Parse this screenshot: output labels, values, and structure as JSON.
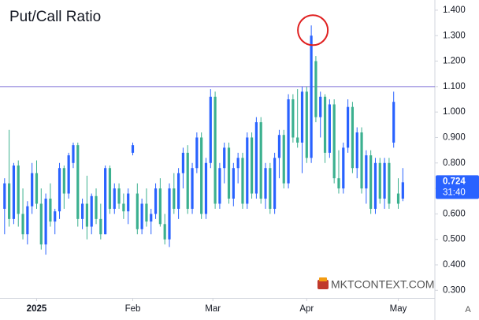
{
  "chart_data": {
    "type": "candlestick",
    "title": "Put/Call Ratio",
    "ohlc": [
      [
        0.62,
        0.74,
        0.52,
        0.72
      ],
      [
        0.72,
        0.93,
        0.55,
        0.58
      ],
      [
        0.58,
        0.8,
        0.56,
        0.79
      ],
      [
        0.79,
        0.81,
        0.55,
        0.6
      ],
      [
        0.6,
        0.7,
        0.5,
        0.52
      ],
      [
        0.52,
        0.65,
        0.48,
        0.63
      ],
      [
        0.63,
        0.8,
        0.6,
        0.76
      ],
      [
        0.76,
        0.81,
        0.62,
        0.64
      ],
      [
        0.64,
        0.7,
        0.46,
        0.48
      ],
      [
        0.48,
        0.68,
        0.44,
        0.66
      ],
      [
        0.66,
        0.72,
        0.55,
        0.57
      ],
      [
        0.57,
        0.62,
        0.52,
        0.61
      ],
      [
        0.61,
        0.8,
        0.58,
        0.78
      ],
      [
        0.78,
        0.79,
        0.62,
        0.68
      ],
      [
        0.68,
        0.84,
        0.66,
        0.83
      ],
      [
        0.8,
        0.88,
        0.78,
        0.87
      ],
      [
        0.87,
        0.88,
        0.55,
        0.58
      ],
      [
        0.58,
        0.66,
        0.54,
        0.64
      ],
      [
        0.64,
        0.75,
        0.5,
        0.55
      ],
      [
        0.55,
        0.68,
        0.52,
        0.67
      ],
      [
        0.67,
        0.7,
        0.56,
        0.58
      ],
      [
        0.58,
        0.64,
        0.5,
        0.52
      ],
      [
        0.52,
        0.79,
        0.52,
        0.78
      ],
      [
        0.78,
        0.79,
        0.6,
        0.62
      ],
      [
        0.62,
        0.72,
        0.6,
        0.7
      ],
      [
        0.7,
        0.72,
        0.62,
        0.64
      ],
      [
        0.64,
        0.68,
        0.58,
        0.61
      ],
      [
        0.61,
        0.7,
        0.56,
        0.68
      ],
      [
        0.84,
        0.88,
        0.83,
        0.87
      ],
      [
        0.68,
        0.72,
        0.52,
        0.54
      ],
      [
        0.54,
        0.66,
        0.52,
        0.64
      ],
      [
        0.64,
        0.7,
        0.55,
        0.57
      ],
      [
        0.57,
        0.62,
        0.52,
        0.6
      ],
      [
        0.6,
        0.72,
        0.58,
        0.7
      ],
      [
        0.7,
        0.74,
        0.55,
        0.56
      ],
      [
        0.56,
        0.6,
        0.48,
        0.5
      ],
      [
        0.5,
        0.72,
        0.47,
        0.7
      ],
      [
        0.7,
        0.76,
        0.6,
        0.62
      ],
      [
        0.62,
        0.78,
        0.58,
        0.76
      ],
      [
        0.76,
        0.86,
        0.7,
        0.84
      ],
      [
        0.84,
        0.87,
        0.6,
        0.62
      ],
      [
        0.62,
        0.8,
        0.6,
        0.78
      ],
      [
        0.78,
        0.92,
        0.76,
        0.9
      ],
      [
        0.9,
        0.92,
        0.58,
        0.6
      ],
      [
        0.6,
        0.82,
        0.58,
        0.8
      ],
      [
        0.8,
        1.09,
        0.78,
        1.06
      ],
      [
        1.06,
        1.08,
        0.62,
        0.64
      ],
      [
        0.64,
        0.8,
        0.62,
        0.78
      ],
      [
        0.78,
        0.88,
        0.72,
        0.86
      ],
      [
        0.86,
        0.88,
        0.64,
        0.66
      ],
      [
        0.66,
        0.8,
        0.63,
        0.78
      ],
      [
        0.78,
        0.84,
        0.72,
        0.82
      ],
      [
        0.82,
        0.84,
        0.62,
        0.64
      ],
      [
        0.64,
        0.92,
        0.62,
        0.9
      ],
      [
        0.9,
        0.92,
        0.66,
        0.68
      ],
      [
        0.68,
        0.98,
        0.66,
        0.96
      ],
      [
        0.96,
        0.98,
        0.64,
        0.66
      ],
      [
        0.66,
        0.8,
        0.62,
        0.78
      ],
      [
        0.78,
        0.8,
        0.6,
        0.62
      ],
      [
        0.62,
        0.84,
        0.6,
        0.82
      ],
      [
        0.82,
        0.93,
        0.74,
        0.91
      ],
      [
        0.91,
        0.93,
        0.7,
        0.72
      ],
      [
        0.72,
        1.07,
        0.7,
        1.05
      ],
      [
        1.05,
        1.07,
        0.88,
        0.9
      ],
      [
        0.9,
        1.09,
        0.86,
        0.88
      ],
      [
        0.88,
        1.1,
        0.76,
        1.08
      ],
      [
        1.08,
        1.1,
        0.8,
        0.82
      ],
      [
        0.82,
        1.34,
        0.8,
        1.3
      ],
      [
        1.2,
        1.22,
        0.96,
        0.98
      ],
      [
        0.98,
        1.08,
        0.9,
        1.06
      ],
      [
        1.06,
        1.07,
        0.8,
        0.84
      ],
      [
        0.84,
        1.05,
        0.82,
        1.03
      ],
      [
        1.03,
        1.05,
        0.72,
        0.74
      ],
      [
        0.74,
        0.85,
        0.68,
        0.7
      ],
      [
        0.7,
        0.88,
        0.68,
        0.86
      ],
      [
        0.86,
        1.05,
        0.84,
        1.02
      ],
      [
        1.02,
        1.04,
        0.76,
        0.78
      ],
      [
        0.78,
        0.94,
        0.74,
        0.92
      ],
      [
        0.92,
        0.94,
        0.68,
        0.7
      ],
      [
        0.7,
        0.85,
        0.64,
        0.83
      ],
      [
        0.83,
        0.85,
        0.6,
        0.62
      ],
      [
        0.62,
        0.82,
        0.6,
        0.8
      ],
      [
        0.8,
        0.82,
        0.64,
        0.66
      ],
      [
        0.66,
        0.82,
        0.62,
        0.8
      ],
      [
        0.8,
        0.82,
        0.62,
        0.64
      ],
      [
        0.88,
        1.08,
        0.86,
        1.04
      ],
      [
        0.68,
        0.74,
        0.62,
        0.64
      ],
      [
        0.66,
        0.78,
        0.65,
        0.724
      ]
    ],
    "up_color": "#2962ff",
    "down_color": "#3bb08f",
    "xlim": [
      -1,
      94
    ],
    "ylim": [
      0.27,
      1.44
    ],
    "xticks": [
      {
        "value": 7,
        "label": "2025"
      },
      {
        "value": 28,
        "label": "Feb"
      },
      {
        "value": 45.5,
        "label": "Mar"
      },
      {
        "value": 66,
        "label": "Apr"
      },
      {
        "value": 86,
        "label": "May"
      }
    ],
    "yticks": [
      {
        "value": 1.4,
        "label": "1.400"
      },
      {
        "value": 1.3,
        "label": "1.300"
      },
      {
        "value": 1.2,
        "label": "1.200"
      },
      {
        "value": 1.1,
        "label": "1.100"
      },
      {
        "value": 1.0,
        "label": "1.000"
      },
      {
        "value": 0.9,
        "label": "0.900"
      },
      {
        "value": 0.8,
        "label": "0.800"
      },
      {
        "value": 0.7,
        "label": "0.700"
      },
      {
        "value": 0.6,
        "label": "0.600"
      },
      {
        "value": 0.5,
        "label": "0.500"
      },
      {
        "value": 0.4,
        "label": "0.400"
      },
      {
        "value": 0.3,
        "label": "0.300"
      }
    ],
    "hline": 1.1,
    "hline_color": "#7e6fd6",
    "last_value": 0.724,
    "last_value_label": "0.724",
    "countdown": "31:40",
    "watermark": "MKTCONTEXT.COM",
    "scale_mode": "A"
  }
}
